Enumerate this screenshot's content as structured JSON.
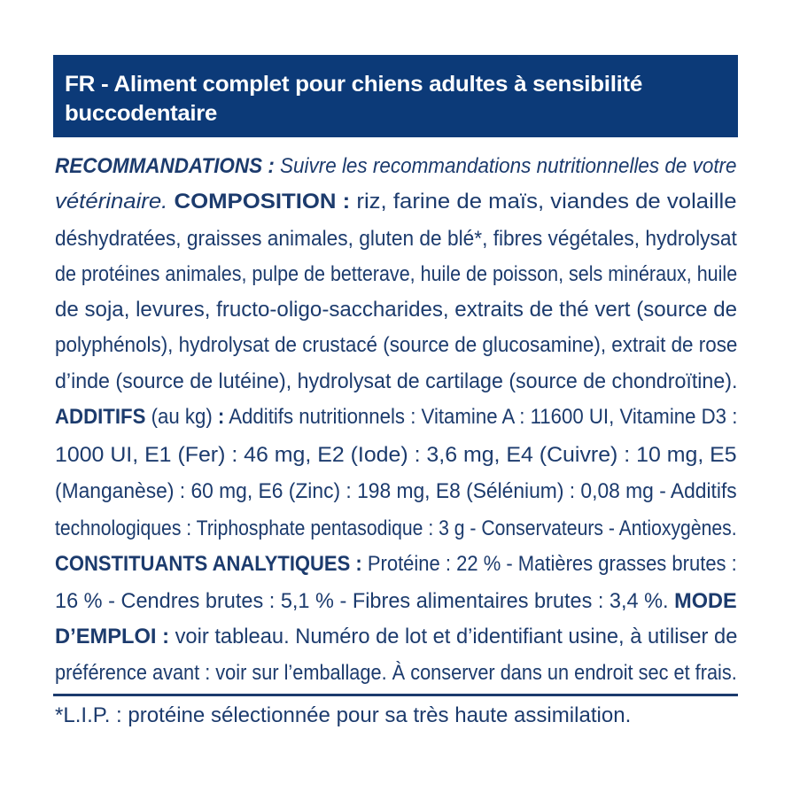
{
  "colors": {
    "banner": "#0c3a78",
    "text": "#1c3b6d",
    "banner_text": "#ffffff"
  },
  "header": {
    "line1_bold": "FR -",
    "line1_rest": " Aliment complet pour chiens adultes à sensibilité",
    "line2": "buccodentaire"
  },
  "body": {
    "lines": [
      [
        {
          "t": "RECOMMANDATIONS :",
          "s": "bi"
        },
        {
          "t": " Suivre les recommandations nutritionnelles de votre",
          "s": "i"
        }
      ],
      [
        {
          "t": "vétérinaire.",
          "s": "i"
        },
        {
          "t": " COMPOSITION :",
          "s": "b"
        },
        {
          "t": " riz, farine de maïs, viandes de volaille",
          "s": "n"
        }
      ],
      [
        {
          "t": "déshydratées, graisses animales, gluten de blé*, fibres végétales, hydrolysat",
          "s": "n"
        }
      ],
      [
        {
          "t": "de protéines animales, pulpe de betterave, huile de poisson, sels minéraux, huile",
          "s": "n"
        }
      ],
      [
        {
          "t": "de soja, levures, fructo-oligo-saccharides, extraits de thé vert (source de",
          "s": "n"
        }
      ],
      [
        {
          "t": "polyphénols), hydrolysat de crustacé (source de glucosamine), extrait de rose",
          "s": "n"
        }
      ],
      [
        {
          "t": "d’inde (source de lutéine), hydrolysat de cartilage (source de chondroïtine).",
          "s": "n"
        }
      ],
      [
        {
          "t": "ADDITIFS",
          "s": "b"
        },
        {
          "t": " (au kg) ",
          "s": "n"
        },
        {
          "t": ":",
          "s": "b"
        },
        {
          "t": " Additifs nutritionnels : Vitamine A : 11600 UI, Vitamine D3 :",
          "s": "n"
        }
      ],
      [
        {
          "t": "1000 UI, E1 (Fer) : 46 mg, E2 (Iode) : 3,6 mg, E4 (Cuivre) : 10 mg, E5",
          "s": "n"
        }
      ],
      [
        {
          "t": "(Manganèse) : 60 mg, E6 (Zinc) : 198 mg, E8 (Sélénium) : 0,08 mg - Additifs",
          "s": "n"
        }
      ],
      [
        {
          "t": "technologiques : Triphosphate pentasodique : 3 g - Conservateurs - Antioxygènes.",
          "s": "n"
        }
      ],
      [
        {
          "t": "CONSTITUANTS ANALYTIQUES :",
          "s": "b"
        },
        {
          "t": " Protéine : 22 % - Matières grasses brutes :",
          "s": "n"
        }
      ],
      [
        {
          "t": "16 % - Cendres brutes : 5,1 % - Fibres alimentaires brutes : 3,4 %.",
          "s": "n"
        },
        {
          "t": " MODE",
          "s": "b"
        }
      ],
      [
        {
          "t": "D’EMPLOI :",
          "s": "b"
        },
        {
          "t": " voir tableau. Numéro de lot et d’identifiant usine, à utiliser de",
          "s": "n"
        }
      ],
      [
        {
          "t": "préférence avant : voir sur l’emballage. À conserver dans un endroit sec et frais.",
          "s": "n"
        }
      ]
    ]
  },
  "footnote": "*L.I.P. : protéine sélectionnée pour sa très haute assimilation."
}
